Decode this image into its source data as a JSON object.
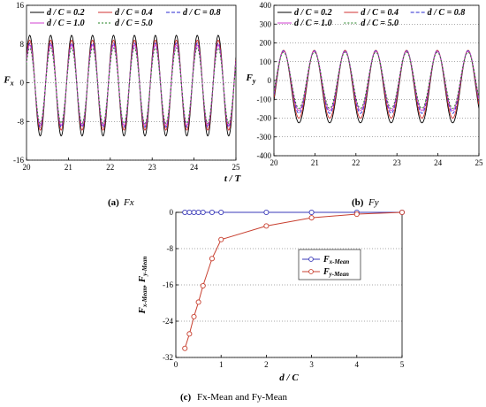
{
  "chart_data": [
    {
      "id": "a",
      "type": "line",
      "caption_letter": "(a)",
      "caption_text": "Fx",
      "ylabel": "Fx",
      "xlabel": "",
      "xlim": [
        20,
        25
      ],
      "ylim": [
        -16,
        16
      ],
      "x_ticks": [
        "20",
        "21",
        "22",
        "23",
        "24",
        "25"
      ],
      "y_ticks": [
        "-16",
        "-8",
        "0",
        "8",
        "16"
      ],
      "grid": "horizontal dotted",
      "legend_placement": "top",
      "period": 0.5,
      "series": [
        {
          "name": "d / C = 0.2",
          "color": "#000000",
          "dash": "",
          "min": -11.0,
          "max": 9.8
        },
        {
          "name": "d / C = 0.4",
          "color": "#d03030",
          "dash": "",
          "min": -9.8,
          "max": 8.8
        },
        {
          "name": "d / C = 0.8",
          "color": "#2a2ad0",
          "dash": "4,2",
          "min": -9.2,
          "max": 8.2
        },
        {
          "name": "d / C = 1.0",
          "color": "#d040d0",
          "dash": "",
          "min": -8.8,
          "max": 7.8
        },
        {
          "name": "d / C = 5.0",
          "color": "#208020",
          "dash": "2,2",
          "min": -8.4,
          "max": 7.2
        }
      ]
    },
    {
      "id": "b",
      "type": "line",
      "caption_letter": "(b)",
      "caption_text": "Fy",
      "ylabel": "Fy",
      "xlabel": "t / T",
      "xlim": [
        20,
        25
      ],
      "ylim": [
        -400,
        400
      ],
      "x_ticks": [
        "20",
        "21",
        "22",
        "23",
        "24",
        "25"
      ],
      "y_ticks": [
        "-400",
        "-300",
        "-200",
        "-100",
        "0",
        "100",
        "200",
        "300",
        "400"
      ],
      "grid": "horizontal dotted",
      "legend_placement": "top",
      "period": 0.75,
      "series": [
        {
          "name": "d / C = 0.2",
          "color": "#000000",
          "dash": "",
          "min": -225,
          "max": 160
        },
        {
          "name": "d / C = 0.4",
          "color": "#d03030",
          "dash": "",
          "min": -200,
          "max": 160
        },
        {
          "name": "d / C = 0.8",
          "color": "#2a2ad0",
          "dash": "4,2",
          "min": -175,
          "max": 158
        },
        {
          "name": "d / C = 1.0",
          "color": "#d040d0",
          "dash": "",
          "min": -160,
          "max": 155
        },
        {
          "name": "d / C = 5.0",
          "color": "#208020",
          "dash": "2,2",
          "min": -148,
          "max": 150
        }
      ]
    },
    {
      "id": "c",
      "type": "line",
      "caption_letter": "(c)",
      "caption_text": "Fx-Mean and Fy-Mean",
      "ylabel": "Fx-Mean, Fy-Mean",
      "xlabel": "d / C",
      "xlim": [
        0,
        5
      ],
      "ylim": [
        -32,
        0
      ],
      "x_ticks": [
        "0",
        "1",
        "2",
        "3",
        "4",
        "5"
      ],
      "y_ticks": [
        "-32",
        "-24",
        "-16",
        "-8",
        "0"
      ],
      "grid": "horizontal dotted",
      "legend_placement": "right",
      "series": [
        {
          "name": "Fx-Mean",
          "color": "#3a3ab8",
          "x": [
            0.2,
            0.3,
            0.4,
            0.5,
            0.6,
            0.8,
            1.0,
            2.0,
            3.0,
            4.0,
            5.0
          ],
          "y": [
            0,
            0,
            0,
            0,
            0,
            0,
            0,
            0,
            0,
            0,
            0
          ]
        },
        {
          "name": "Fy-Mean",
          "color": "#c84030",
          "x": [
            0.2,
            0.3,
            0.4,
            0.5,
            0.6,
            0.8,
            1.0,
            2.0,
            3.0,
            4.0,
            5.0
          ],
          "y": [
            -30.0,
            -26.8,
            -23.0,
            -19.8,
            -16.2,
            -10.2,
            -6.0,
            -3.0,
            -1.2,
            -0.4,
            0.0
          ]
        }
      ]
    }
  ]
}
